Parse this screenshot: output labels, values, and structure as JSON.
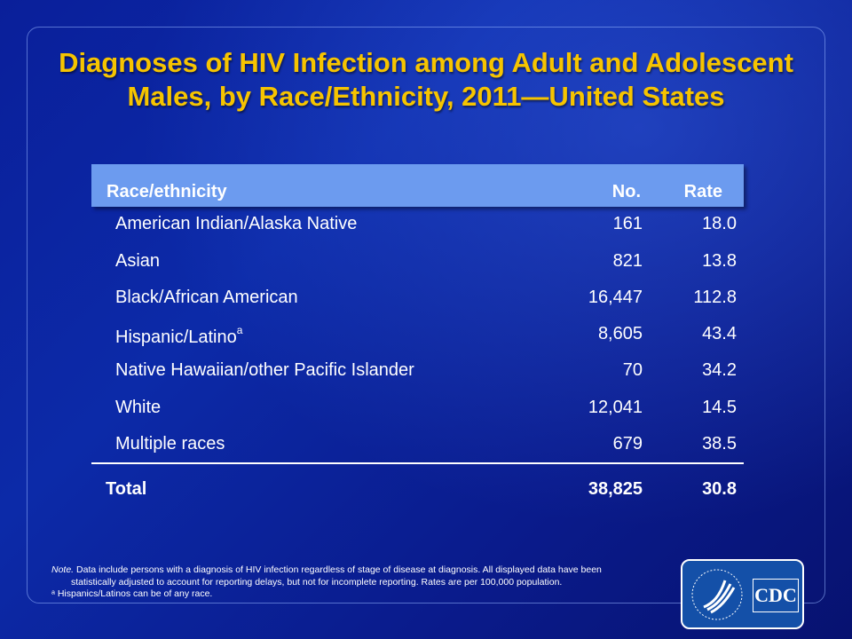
{
  "title_line1": "Diagnoses of HIV Infection among Adult and Adolescent",
  "title_line2": "Males, by Race/Ethnicity, 2011—United States",
  "table": {
    "headers": [
      "Race/ethnicity",
      "No.",
      "Rate"
    ],
    "rows": [
      {
        "label": "American Indian/Alaska Native",
        "no": "161",
        "rate": "18.0"
      },
      {
        "label": "Asian",
        "no": "821",
        "rate": "13.8"
      },
      {
        "label": "Black/African American",
        "no": "16,447",
        "rate": "112.8"
      },
      {
        "label": "Hispanic/Latino",
        "sup": "a",
        "no": "8,605",
        "rate": "43.4"
      },
      {
        "label": "Native Hawaiian/other Pacific Islander",
        "no": "70",
        "rate": "34.2"
      },
      {
        "label": "White",
        "no": "12,041",
        "rate": "14.5"
      },
      {
        "label": "Multiple races",
        "no": "679",
        "rate": "38.5"
      }
    ],
    "total": {
      "label": "Total",
      "no": "38,825",
      "rate": "30.8"
    }
  },
  "note": {
    "prefix": "Note.",
    "line1": "Data include persons with a diagnosis of HIV infection regardless of stage of disease at diagnosis. All displayed data have been",
    "line2": "statistically adjusted to account for reporting delays, but not for incomplete reporting. Rates are per 100,000 population.",
    "footnote": "ᵃ Hispanics/Latinos can be of any race."
  },
  "logo": {
    "text": "CDC"
  },
  "colors": {
    "title": "#f6c400",
    "header": "#6c9bef",
    "background": "#0a1f9a"
  }
}
